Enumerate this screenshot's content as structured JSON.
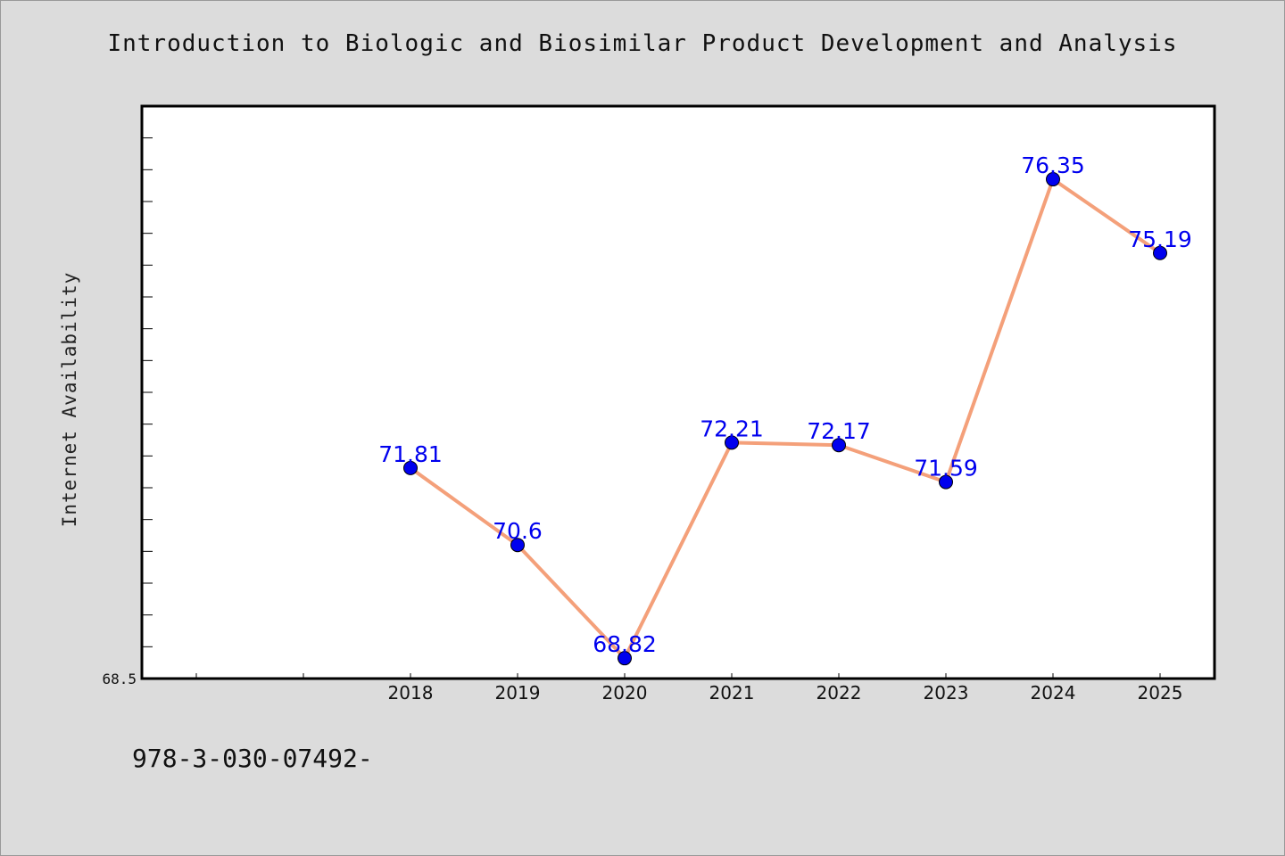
{
  "page": {
    "background": "#dcdcdc",
    "footnote": "978-3-030-07492-"
  },
  "chart_data": {
    "type": "line",
    "title": "Introduction to Biologic and Biosimilar Product Development and Analysis",
    "xlabel": "",
    "ylabel": "Internet Availability",
    "categories": [
      "2018",
      "2019",
      "2020",
      "2021",
      "2022",
      "2023",
      "2024",
      "2025"
    ],
    "series": [
      {
        "values": [
          71.81,
          70.6,
          68.82,
          72.21,
          72.17,
          71.59,
          76.35,
          75.19
        ],
        "line_color": "#f4a07a",
        "marker_color": "#0000ee",
        "label_color": "#0000ee"
      }
    ],
    "y_tick_labels": [
      "68.5"
    ],
    "ylim": [
      68.5,
      77.5
    ],
    "grid": false,
    "legend": "none"
  }
}
